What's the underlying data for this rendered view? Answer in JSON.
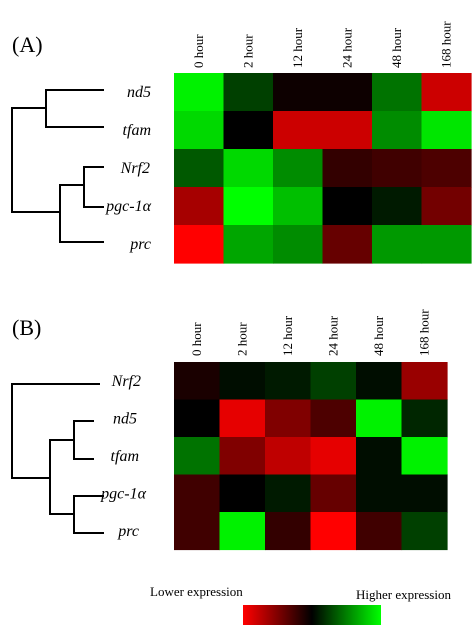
{
  "chart_data": [
    {
      "type": "heatmap",
      "panel_label": "(A)",
      "columns": [
        "0 hour",
        "2 hour",
        "12 hour",
        "24 hour",
        "48 hour",
        "168 hour"
      ],
      "rows": [
        "nd5",
        "tfam",
        "Nrf2",
        "pgc-1α",
        "prc"
      ],
      "values": [
        [
          0.95,
          0.25,
          -0.05,
          -0.05,
          0.45,
          -0.8
        ],
        [
          0.85,
          0.0,
          -0.8,
          -0.8,
          0.55,
          0.9
        ],
        [
          0.35,
          0.85,
          0.55,
          -0.2,
          -0.25,
          -0.3
        ],
        [
          -0.65,
          1.0,
          0.75,
          0.0,
          0.1,
          -0.45
        ],
        [
          -1.0,
          0.65,
          0.55,
          -0.4,
          0.6,
          0.6
        ]
      ],
      "dendrogram_order": [
        "nd5",
        "tfam",
        "Nrf2",
        "pgc-1α",
        "prc"
      ]
    },
    {
      "type": "heatmap",
      "panel_label": "(B)",
      "columns": [
        "0 hour",
        "2 hour",
        "12 hour",
        "24 hour",
        "48 hour",
        "168 hour"
      ],
      "rows": [
        "Nrf2",
        "nd5",
        "tfam",
        "pgc-1α",
        "prc"
      ],
      "values": [
        [
          -0.1,
          0.05,
          0.1,
          0.25,
          0.05,
          -0.6
        ],
        [
          0.0,
          -0.9,
          -0.5,
          -0.3,
          0.95,
          0.15
        ],
        [
          0.45,
          -0.5,
          -0.75,
          -0.9,
          0.05,
          0.95
        ],
        [
          -0.25,
          0.0,
          0.1,
          -0.4,
          0.05,
          0.05
        ],
        [
          -0.25,
          0.95,
          -0.2,
          -1.0,
          -0.25,
          0.25
        ]
      ],
      "dendrogram_order": [
        "Nrf2",
        "nd5",
        "tfam",
        "pgc-1α",
        "prc"
      ]
    }
  ],
  "legend": {
    "low_label": "Lower expression",
    "high_label": "Higher expression",
    "colors": [
      "#ff0000",
      "#000000",
      "#00ff00"
    ]
  }
}
